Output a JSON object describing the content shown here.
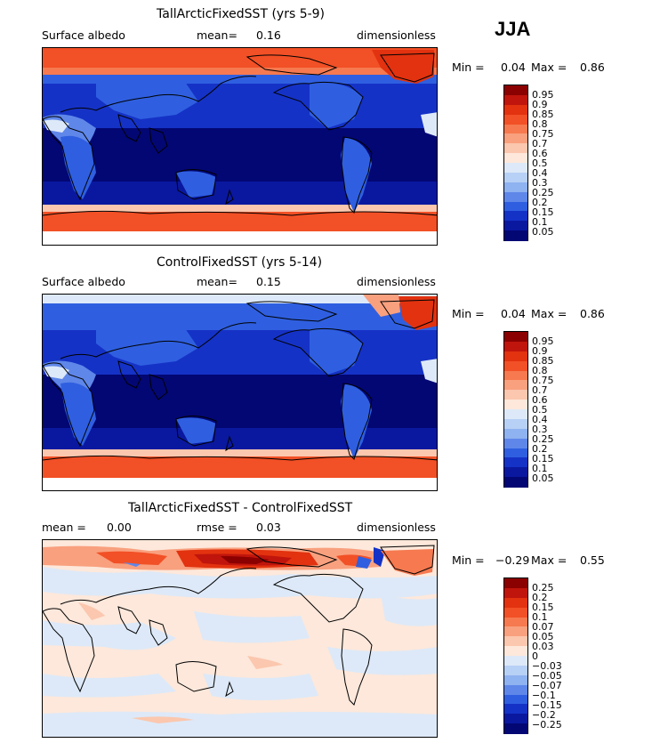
{
  "season": "JJA",
  "panels": [
    {
      "title": "TallArcticFixedSST (yrs 5-9)",
      "left_label": "Surface albedo",
      "mean_label": "mean=",
      "mean_value": "0.16",
      "right_label": "dimensionless",
      "min_label": "Min =",
      "min_value": "0.04",
      "max_label": "Max =",
      "max_value": "0.86",
      "colorbar_levels": [
        "0.95",
        "0.9",
        "0.85",
        "0.8",
        "0.75",
        "0.7",
        "0.6",
        "0.5",
        "0.4",
        "0.3",
        "0.25",
        "0.2",
        "0.15",
        "0.1",
        "0.05"
      ],
      "colorbar_colors": [
        "#8b0000",
        "#c0150c",
        "#e2320f",
        "#f25026",
        "#f6794f",
        "#f9a07e",
        "#fbc7ae",
        "#fde8db",
        "#dde9f8",
        "#b7d0f5",
        "#8fb2f0",
        "#5f87e9",
        "#2f5fe0",
        "#1532c6",
        "#0a189f",
        "#030773"
      ]
    },
    {
      "title": "ControlFixedSST (yrs 5-14)",
      "left_label": "Surface albedo",
      "mean_label": "mean=",
      "mean_value": "0.15",
      "right_label": "dimensionless",
      "min_label": "Min =",
      "min_value": "0.04",
      "max_label": "Max =",
      "max_value": "0.86",
      "colorbar_levels": [
        "0.95",
        "0.9",
        "0.85",
        "0.8",
        "0.75",
        "0.7",
        "0.6",
        "0.5",
        "0.4",
        "0.3",
        "0.25",
        "0.2",
        "0.15",
        "0.1",
        "0.05"
      ],
      "colorbar_colors": [
        "#8b0000",
        "#c0150c",
        "#e2320f",
        "#f25026",
        "#f6794f",
        "#f9a07e",
        "#fbc7ae",
        "#fde8db",
        "#dde9f8",
        "#b7d0f5",
        "#8fb2f0",
        "#5f87e9",
        "#2f5fe0",
        "#1532c6",
        "#0a189f",
        "#030773"
      ]
    },
    {
      "title": "TallArcticFixedSST - ControlFixedSST",
      "left_label": "mean =",
      "left_value": "0.00",
      "mean_label": "rmse =",
      "mean_value": "0.03",
      "right_label": "dimensionless",
      "min_label": "Min =",
      "min_value": "−0.29",
      "max_label": "Max =",
      "max_value": "0.55",
      "colorbar_levels": [
        "0.25",
        "0.2",
        "0.15",
        "0.1",
        "0.07",
        "0.05",
        "0.03",
        "0",
        "−0.03",
        "−0.05",
        "−0.07",
        "−0.1",
        "−0.15",
        "−0.2",
        "−0.25"
      ],
      "colorbar_colors": [
        "#8b0000",
        "#c0150c",
        "#e2320f",
        "#f25026",
        "#f6794f",
        "#f9a07e",
        "#fbc7ae",
        "#fde8db",
        "#dde9f8",
        "#b7d0f5",
        "#8fb2f0",
        "#5f87e9",
        "#2f5fe0",
        "#1532c6",
        "#0a189f",
        "#030773"
      ]
    }
  ]
}
